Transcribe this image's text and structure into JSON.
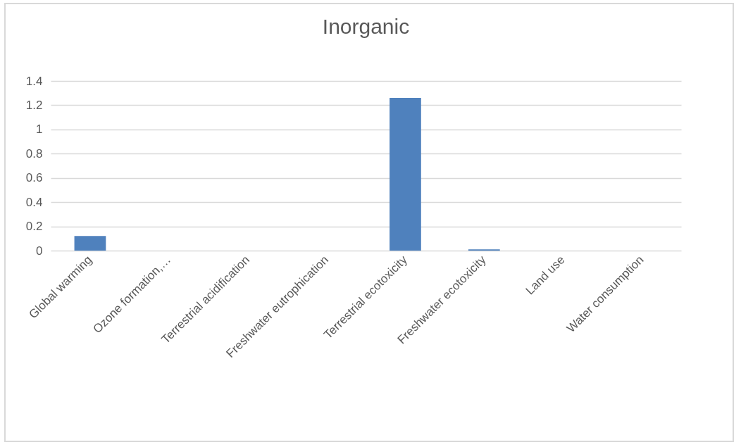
{
  "chart_data": {
    "type": "bar",
    "title": "Inorganic",
    "categories": [
      "Global warming",
      "Ozone formation,…",
      "Terrestrial acidification",
      "Freshwater eutrophication",
      "Terrestrial ecotoxicity",
      "Freshwater ecotoxicity",
      "Land use",
      "Water consumption"
    ],
    "values": [
      0.12,
      0,
      0,
      0,
      1.26,
      0.01,
      0,
      0
    ],
    "color": "#4f81bd",
    "ylim": [
      0,
      1.4
    ],
    "yticks": [
      0,
      0.2,
      0.4,
      0.6,
      0.8,
      1,
      1.2,
      1.4
    ],
    "grid": "y"
  }
}
